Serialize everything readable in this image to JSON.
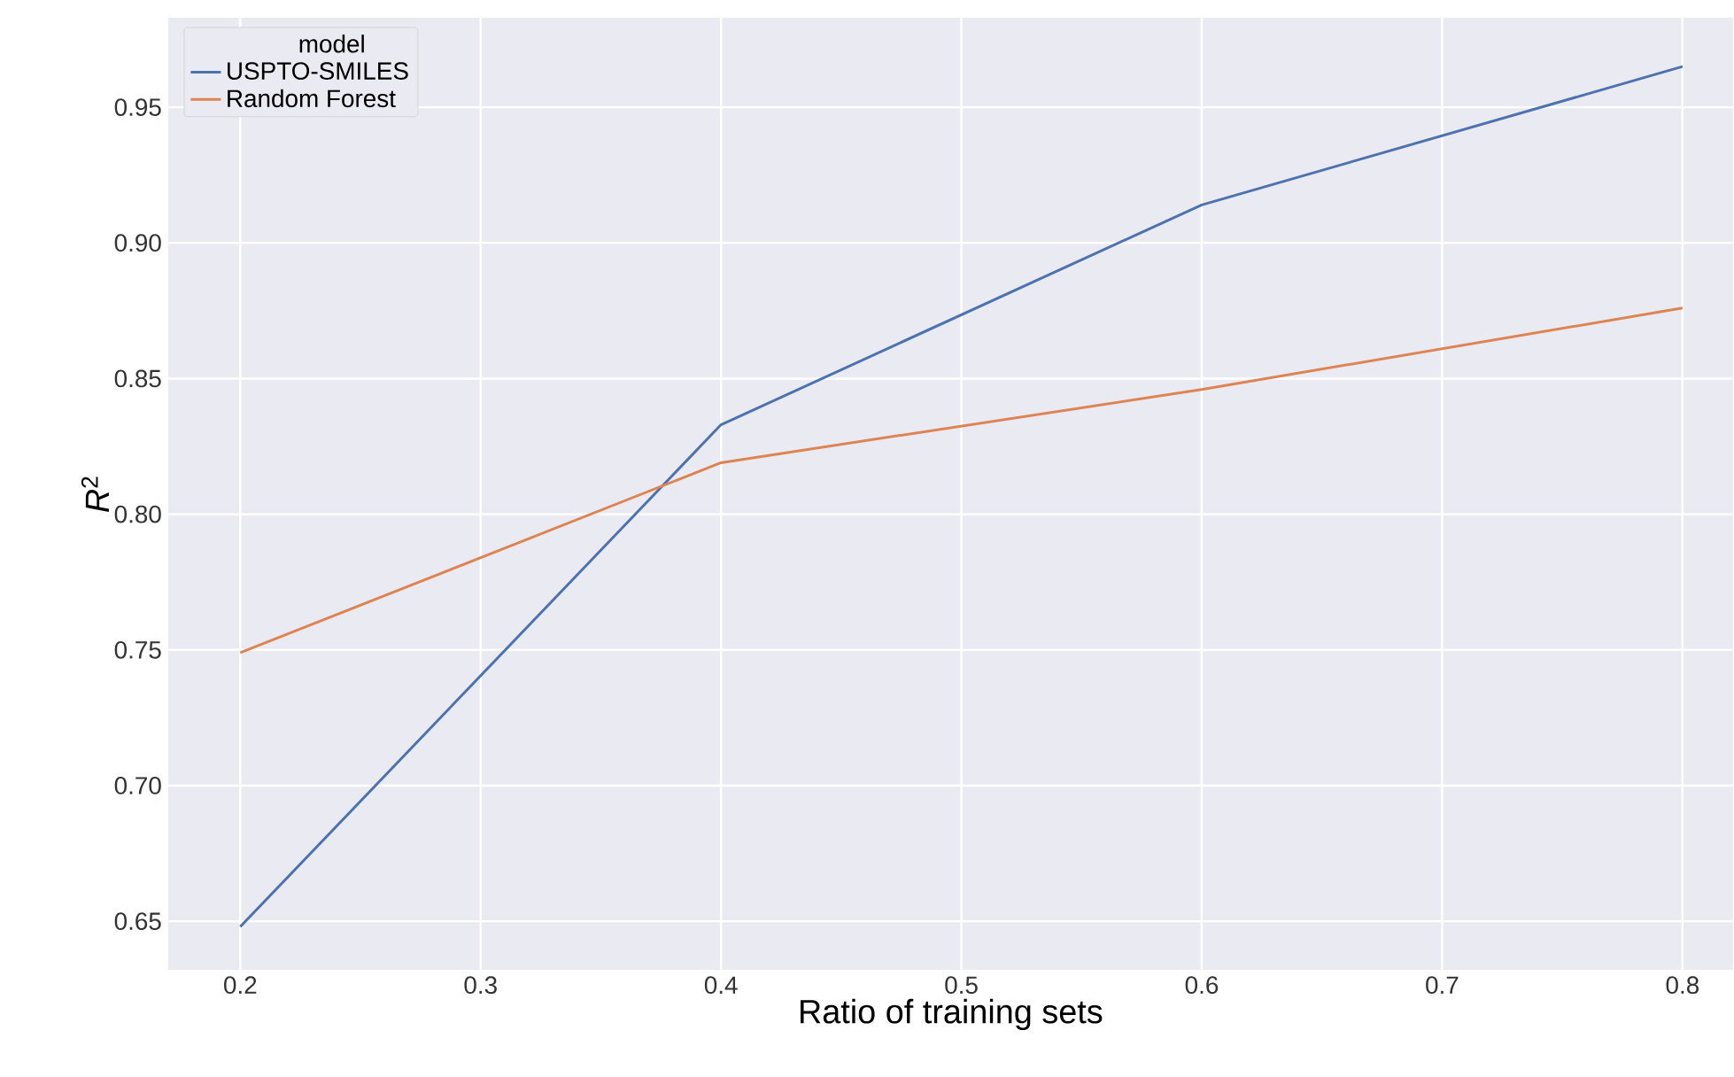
{
  "chart_data": {
    "type": "line",
    "xlabel": "Ratio of training sets",
    "ylabel": "*R*$^{2}$",
    "legend_title": "model",
    "x": [
      0.2,
      0.4,
      0.6,
      0.8
    ],
    "series": [
      {
        "name": "USPTO-SMILES",
        "color": "#4c72b0",
        "values": [
          0.648,
          0.833,
          0.914,
          0.965
        ]
      },
      {
        "name": "Random Forest",
        "color": "#dd8452",
        "values": [
          0.749,
          0.819,
          0.846,
          0.876
        ]
      }
    ],
    "xlim": [
      0.17,
      0.821
    ],
    "ylim": [
      0.632,
      0.983
    ],
    "xticks": [
      0.2,
      0.3,
      0.4,
      0.5,
      0.6,
      0.7,
      0.8
    ],
    "yticks": [
      0.65,
      {
        "value": 0.7,
        "label": "0.70"
      },
      0.75,
      {
        "value": 0.8,
        "label": "0.80"
      },
      0.85,
      {
        "value": 0.9,
        "label": "0.90"
      },
      0.95
    ],
    "grid": true,
    "legend": "top left",
    "marker": "none",
    "line_style": "solid"
  }
}
